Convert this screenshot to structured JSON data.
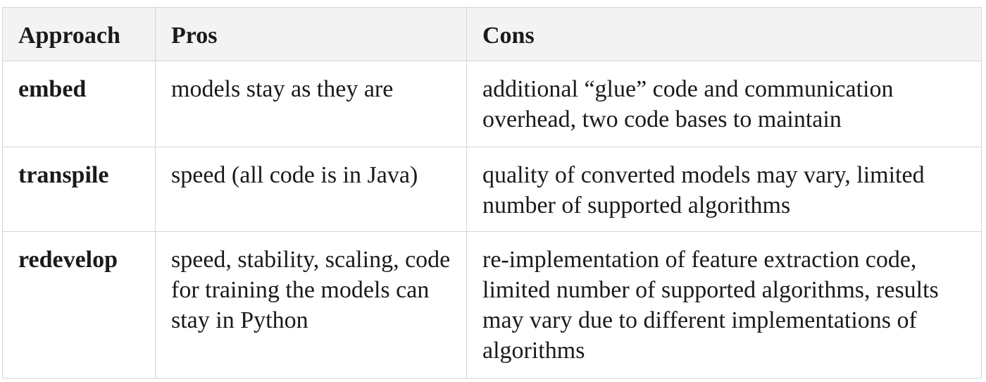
{
  "table": {
    "headers": {
      "approach": "Approach",
      "pros": "Pros",
      "cons": "Cons"
    },
    "rows": [
      {
        "approach": "embed",
        "pros": "models stay as they are",
        "cons": "additional “glue” code and communication overhead, two code bases to maintain"
      },
      {
        "approach": "transpile",
        "pros": "speed (all code is in Java)",
        "cons": "quality of converted models may vary, limited number of supported algorithms"
      },
      {
        "approach": "redevelop",
        "pros": "speed, stability, scaling, code for training the models can stay in Python",
        "cons": "re-implementation of feature extraction code, limited number of supported algorithms, results may vary due to different implementations of algorithms"
      }
    ]
  }
}
